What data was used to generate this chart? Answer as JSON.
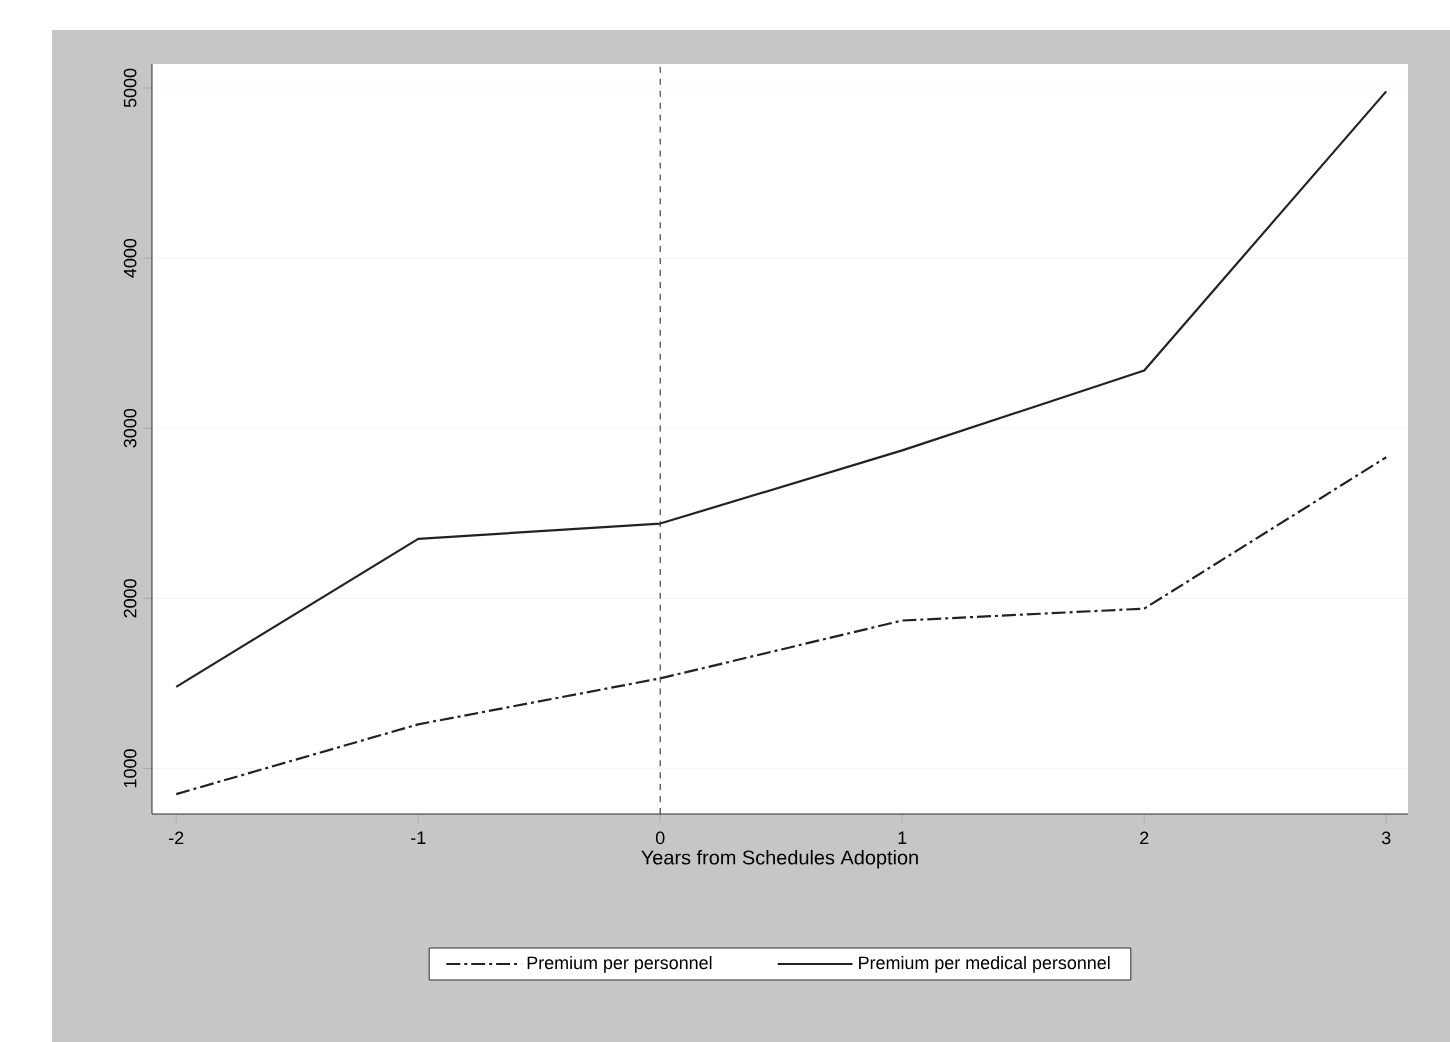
{
  "chart_data": {
    "type": "line",
    "xlabel": "Years from Schedules Adoption",
    "x": [
      -2,
      -1,
      0,
      1,
      2,
      3
    ],
    "series": [
      {
        "name": "Premium per personnel",
        "color": "#222222",
        "line_style": "dashdot",
        "values": [
          850,
          1260,
          1530,
          1870,
          1940,
          2830
        ]
      },
      {
        "name": "Premium per medical personnel",
        "color": "#222222",
        "line_style": "solid",
        "values": [
          1480,
          2350,
          2440,
          2870,
          3340,
          4980
        ]
      }
    ],
    "xlim": [
      -2.1,
      3.09
    ],
    "ylim": [
      733,
      5141
    ],
    "xticks": [
      -2,
      -1,
      0,
      1,
      2,
      3
    ],
    "yticks": [
      1000,
      2000,
      3000,
      4000,
      5000
    ],
    "grid": "y",
    "legend": "bottom",
    "marker": "none",
    "ref_lines": [
      {
        "axis": "x",
        "value": 0,
        "color": "#444444",
        "line_style": "dashed"
      }
    ]
  }
}
